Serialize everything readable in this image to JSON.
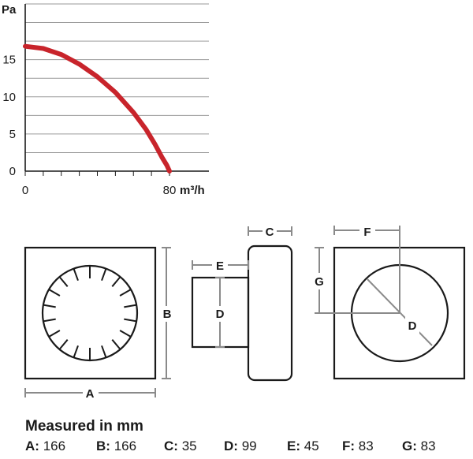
{
  "chart_data": {
    "type": "line",
    "ylabel": "Pa",
    "xunit": "m³/h",
    "xlim": [
      0,
      80
    ],
    "ylim": [
      0,
      22.5
    ],
    "yticks": [
      "0",
      "5",
      "10",
      "15"
    ],
    "xticks": [
      "0",
      "80"
    ],
    "grid": true,
    "series": [
      {
        "color": "#c8242b",
        "x": [
          0,
          10,
          20,
          30,
          40,
          50,
          60,
          67,
          72,
          76,
          78.5,
          80
        ],
        "y": [
          16.8,
          16.5,
          15.7,
          14.4,
          12.7,
          10.6,
          7.9,
          5.6,
          3.6,
          1.8,
          0.8,
          0
        ]
      }
    ]
  },
  "diagram": {
    "labels": {
      "a": "A",
      "b": "B",
      "c": "C",
      "d_side": "D",
      "e": "E",
      "f": "F",
      "g": "G",
      "d_back": "D"
    },
    "colors": {
      "outline": "#1a1a1a",
      "dimension": "#8a8a8a"
    }
  },
  "measurements": {
    "title": "Measured in mm",
    "items": [
      {
        "key": "A:",
        "value": "166"
      },
      {
        "key": "B:",
        "value": "166"
      },
      {
        "key": "C:",
        "value": "35"
      },
      {
        "key": "D:",
        "value": "99"
      },
      {
        "key": "E:",
        "value": "45"
      },
      {
        "key": "F:",
        "value": "83"
      },
      {
        "key": "G:",
        "value": "83"
      }
    ]
  }
}
